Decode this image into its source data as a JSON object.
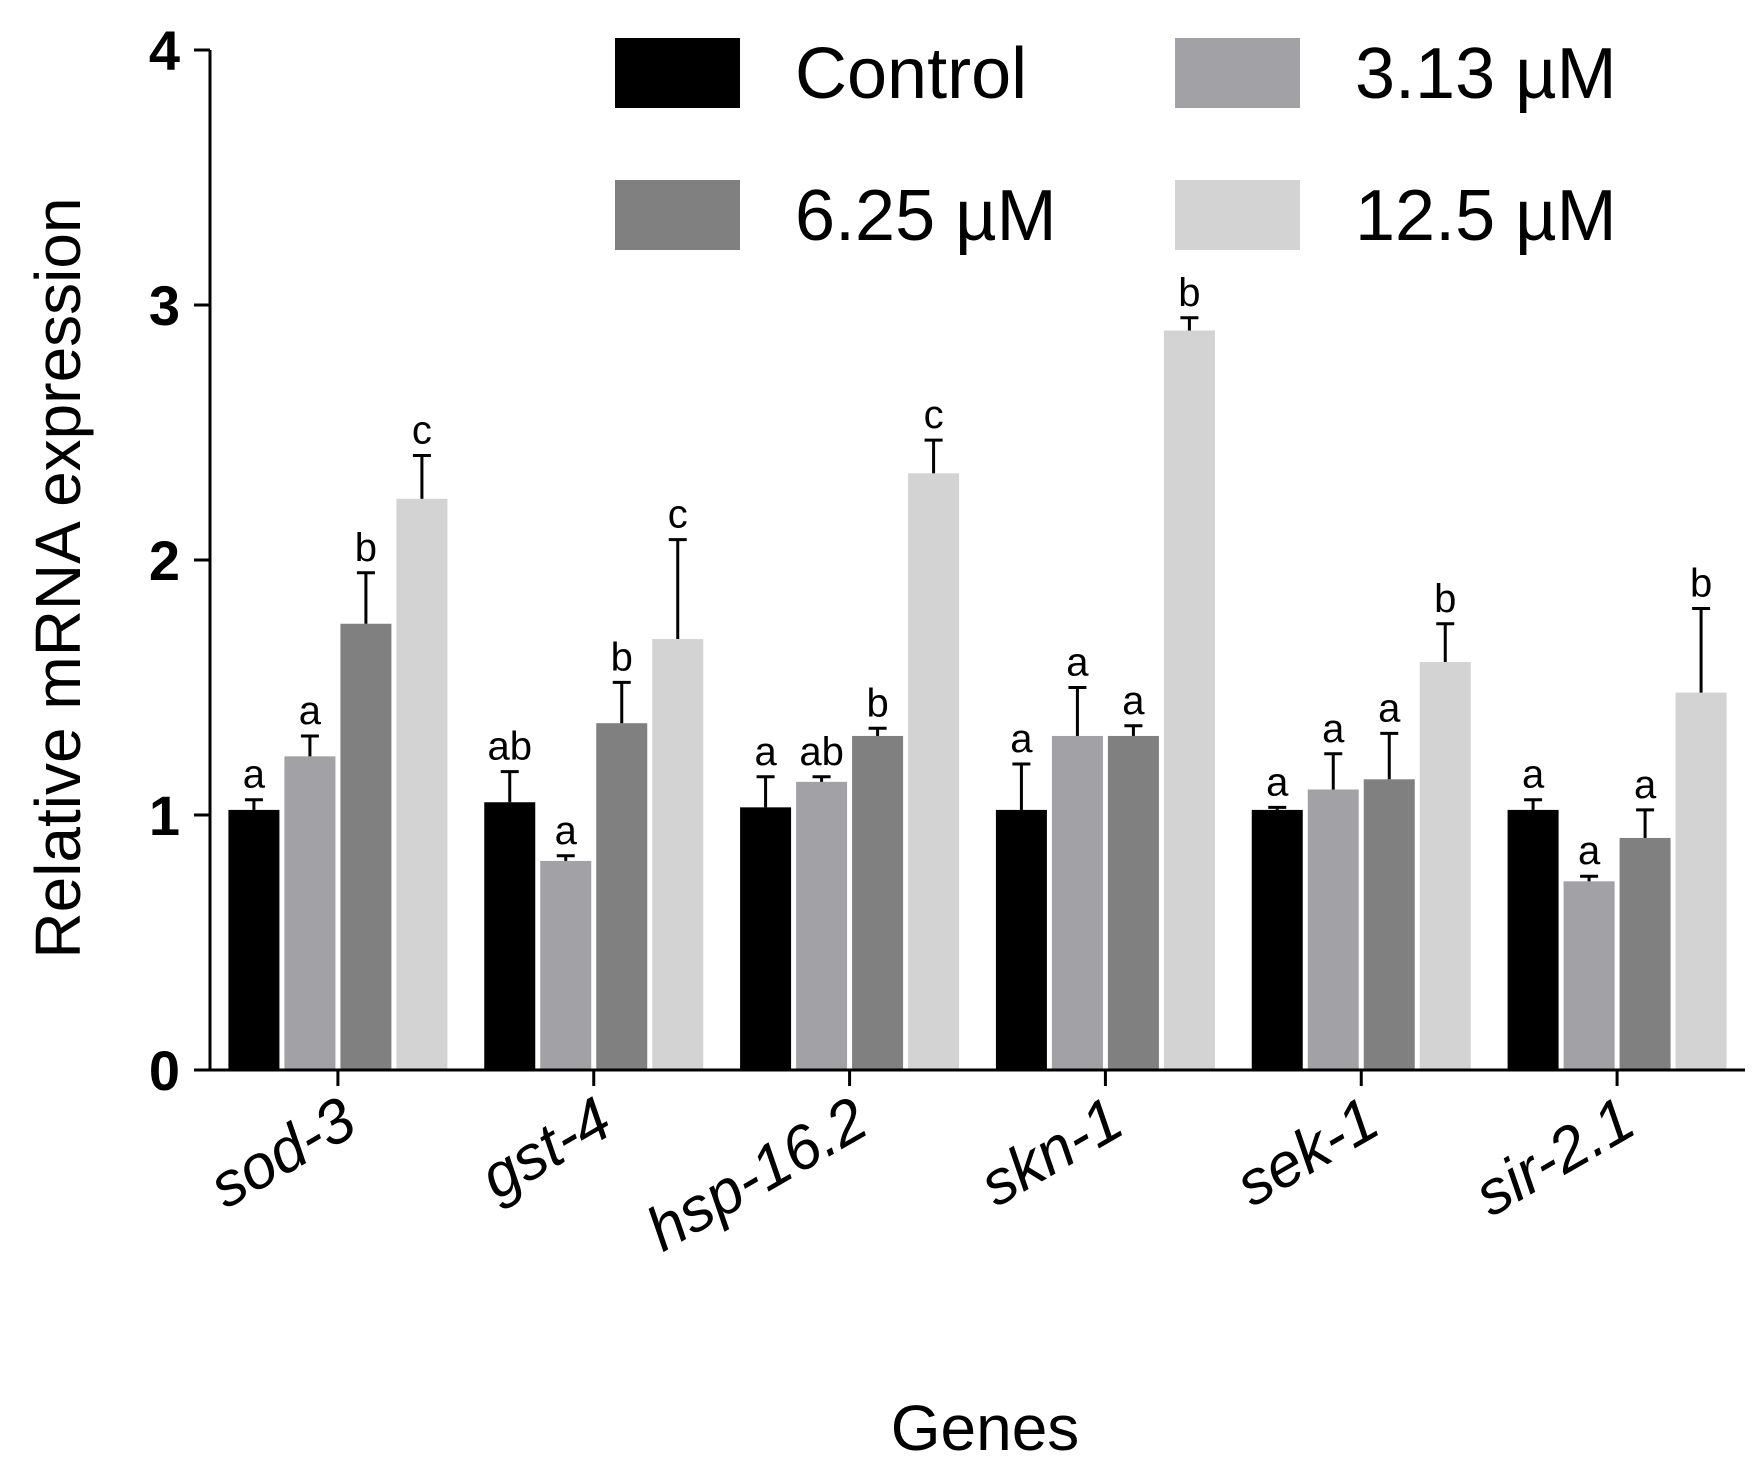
{
  "chart_data": {
    "type": "bar",
    "title": "",
    "xlabel": "Genes",
    "ylabel": "Relative mRNA expression",
    "ylim": [
      0,
      4
    ],
    "yticks": [
      "0",
      "1",
      "2",
      "3",
      "4"
    ],
    "categories": [
      "sod-3",
      "gst-4",
      "hsp-16.2",
      "skn-1",
      "sek-1",
      "sir-2.1"
    ],
    "legend_position": "top-right",
    "series": [
      {
        "name": "Control",
        "color": "#000000",
        "values": [
          1.02,
          1.05,
          1.03,
          1.02,
          1.02,
          1.02
        ],
        "errors": [
          0.04,
          0.12,
          0.12,
          0.18,
          0.01,
          0.04
        ],
        "sig": [
          "a",
          "ab",
          "a",
          "a",
          "a",
          "a"
        ]
      },
      {
        "name": "3.13 µM",
        "color": "#a2a1a6",
        "values": [
          1.23,
          0.82,
          1.13,
          1.31,
          1.1,
          0.74
        ],
        "errors": [
          0.08,
          0.02,
          0.02,
          0.19,
          0.14,
          0.02
        ],
        "sig": [
          "a",
          "a",
          "ab",
          "a",
          "a",
          "a"
        ]
      },
      {
        "name": "6.25 µM",
        "color": "#808080",
        "values": [
          1.75,
          1.36,
          1.31,
          1.31,
          1.14,
          0.91
        ],
        "errors": [
          0.2,
          0.16,
          0.03,
          0.04,
          0.18,
          0.11
        ],
        "sig": [
          "b",
          "b",
          "b",
          "a",
          "a",
          "a"
        ]
      },
      {
        "name": "12.5 µM",
        "color": "#d3d3d3",
        "values": [
          2.24,
          1.69,
          2.34,
          2.9,
          1.6,
          1.48
        ],
        "errors": [
          0.17,
          0.39,
          0.13,
          0.05,
          0.15,
          0.33
        ],
        "sig": [
          "c",
          "c",
          "c",
          "b",
          "b",
          "b"
        ]
      }
    ]
  }
}
